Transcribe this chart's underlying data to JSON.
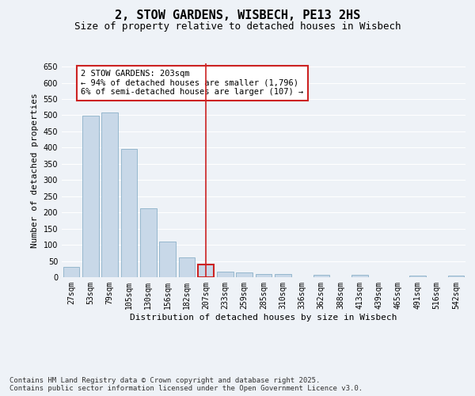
{
  "title": "2, STOW GARDENS, WISBECH, PE13 2HS",
  "subtitle": "Size of property relative to detached houses in Wisbech",
  "xlabel": "Distribution of detached houses by size in Wisbech",
  "ylabel": "Number of detached properties",
  "categories": [
    "27sqm",
    "53sqm",
    "79sqm",
    "105sqm",
    "130sqm",
    "156sqm",
    "182sqm",
    "207sqm",
    "233sqm",
    "259sqm",
    "285sqm",
    "310sqm",
    "336sqm",
    "362sqm",
    "388sqm",
    "413sqm",
    "439sqm",
    "465sqm",
    "491sqm",
    "516sqm",
    "542sqm"
  ],
  "values": [
    33,
    498,
    508,
    396,
    213,
    110,
    62,
    40,
    18,
    15,
    10,
    10,
    0,
    8,
    0,
    8,
    0,
    0,
    4,
    0,
    5
  ],
  "bar_color": "#c8d8e8",
  "bar_edge_color": "#8ab0c8",
  "highlight_index": 7,
  "highlight_color": "#cc2222",
  "annotation_text": "2 STOW GARDENS: 203sqm\n← 94% of detached houses are smaller (1,796)\n6% of semi-detached houses are larger (107) →",
  "annotation_box_color": "#ffffff",
  "annotation_box_edge": "#cc2222",
  "ylim": [
    0,
    660
  ],
  "yticks": [
    0,
    50,
    100,
    150,
    200,
    250,
    300,
    350,
    400,
    450,
    500,
    550,
    600,
    650
  ],
  "footer_line1": "Contains HM Land Registry data © Crown copyright and database right 2025.",
  "footer_line2": "Contains public sector information licensed under the Open Government Licence v3.0.",
  "bg_color": "#eef2f7",
  "grid_color": "#ffffff",
  "title_fontsize": 11,
  "subtitle_fontsize": 9,
  "axis_label_fontsize": 8,
  "tick_fontsize": 7,
  "annotation_fontsize": 7.5,
  "footer_fontsize": 6.5
}
